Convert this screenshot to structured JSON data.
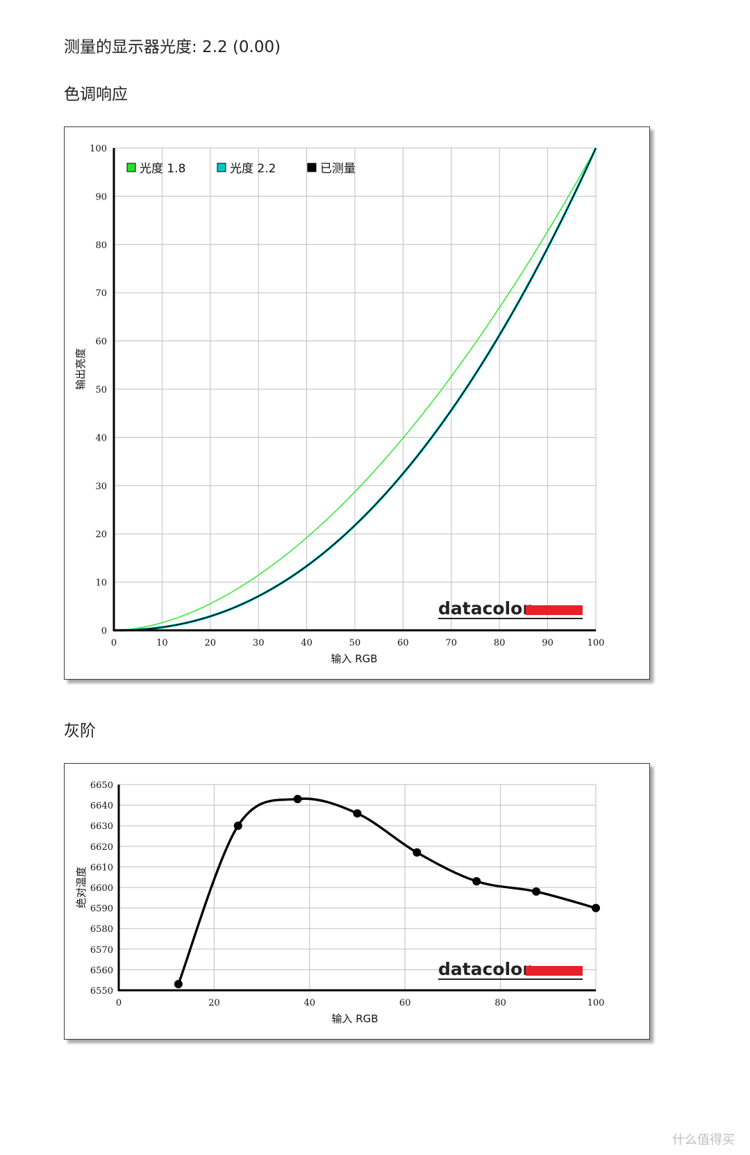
{
  "gamma_heading": "测量的显示器光度: 2.2 (0.00)",
  "tone_heading": "色调响应",
  "gray_heading": "灰阶",
  "watermark": "什么值得买",
  "brand_logo": "datacolor",
  "colors": {
    "gamma18": "#22e622",
    "gamma22": "#00c8c8",
    "measured": "#000000",
    "brand_red": "#e8202a",
    "grid": "#bdbdbd"
  },
  "chart_data": [
    {
      "type": "line",
      "xlabel": "输入 RGB",
      "ylabel": "输出亮度",
      "xlim": [
        0,
        100
      ],
      "ylim": [
        0,
        100
      ],
      "xticks": [
        0,
        10,
        20,
        30,
        40,
        50,
        60,
        70,
        80,
        90,
        100
      ],
      "yticks": [
        0,
        10,
        20,
        30,
        40,
        50,
        60,
        70,
        80,
        90,
        100
      ],
      "grid": true,
      "legend": "top-left",
      "series": [
        {
          "name": "光度 1.8",
          "color": "#22e622",
          "gamma": 1.8
        },
        {
          "name": "光度 2.2",
          "color": "#00c8c8",
          "gamma": 2.2
        },
        {
          "name": "已测量",
          "color": "#000000",
          "gamma": 2.2
        }
      ]
    },
    {
      "type": "line",
      "xlabel": "输入 RGB",
      "ylabel": "绝对温度",
      "xlim": [
        0,
        100
      ],
      "ylim": [
        6550,
        6650
      ],
      "xticks": [
        0,
        20,
        40,
        60,
        80,
        100
      ],
      "yticks": [
        6550,
        6560,
        6570,
        6580,
        6590,
        6600,
        6610,
        6620,
        6630,
        6640,
        6650
      ],
      "grid": true,
      "x": [
        12.5,
        25,
        37.5,
        50,
        62.5,
        75,
        87.5,
        100
      ],
      "values": [
        6553,
        6630,
        6643,
        6636,
        6617,
        6603,
        6598,
        6590
      ]
    }
  ]
}
